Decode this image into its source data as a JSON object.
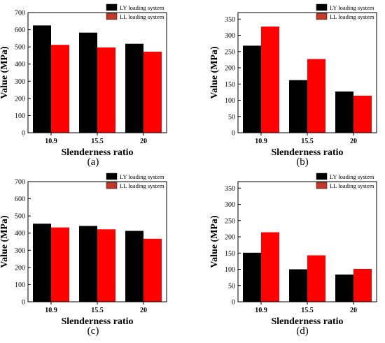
{
  "figure": {
    "panel_labels": [
      "(a)",
      "(b)",
      "(c)",
      "(d)"
    ]
  },
  "colors": {
    "LY": "#000000",
    "LL": "#ff0000",
    "LL_legend": "#c0392b",
    "frame": "#000000",
    "text": "#000000"
  },
  "chart_data": [
    {
      "panel": "(a)",
      "type": "bar",
      "categories": [
        "10.9",
        "15.5",
        "20"
      ],
      "series": [
        {
          "name": "LY loading system",
          "values": [
            625,
            583,
            518
          ]
        },
        {
          "name": "LL loading system",
          "values": [
            512,
            497,
            472
          ]
        }
      ],
      "xlabel": "Slenderness ratio",
      "ylabel": "Value (MPa)",
      "ylim": [
        0,
        700
      ],
      "yticks": [
        0,
        100,
        200,
        300,
        400,
        500,
        600,
        700
      ],
      "legend": "top-right",
      "grid": false
    },
    {
      "panel": "(b)",
      "type": "bar",
      "categories": [
        "10.9",
        "15.5",
        "20"
      ],
      "series": [
        {
          "name": "LY loading system",
          "values": [
            268,
            162,
            127
          ]
        },
        {
          "name": "LL loading system",
          "values": [
            327,
            227,
            114
          ]
        }
      ],
      "xlabel": "Slenderness ratio",
      "ylabel": "Value (MPa)",
      "ylim": [
        0,
        370
      ],
      "yticks": [
        0,
        50,
        100,
        150,
        200,
        250,
        300,
        350
      ],
      "legend": "top-right",
      "grid": false
    },
    {
      "panel": "(c)",
      "type": "bar",
      "categories": [
        "10.9",
        "15.5",
        "20"
      ],
      "series": [
        {
          "name": "LY loading system",
          "values": [
            455,
            442,
            413
          ]
        },
        {
          "name": "LL loading system",
          "values": [
            433,
            422,
            367
          ]
        }
      ],
      "xlabel": "Slenderness ratio",
      "ylabel": "Value (MPa)",
      "ylim": [
        0,
        700
      ],
      "yticks": [
        0,
        100,
        200,
        300,
        400,
        500,
        600,
        700
      ],
      "legend": "top-right",
      "grid": false
    },
    {
      "panel": "(d)",
      "type": "bar",
      "categories": [
        "10.9",
        "15.5",
        "20"
      ],
      "series": [
        {
          "name": "LY loading system",
          "values": [
            151,
            100,
            84
          ]
        },
        {
          "name": "LL loading system",
          "values": [
            214,
            143,
            101
          ]
        }
      ],
      "xlabel": "Slenderness ratio",
      "ylabel": "Value (MPa)",
      "ylim": [
        0,
        370
      ],
      "yticks": [
        0,
        50,
        100,
        150,
        200,
        250,
        300,
        350
      ],
      "legend": "top-right",
      "grid": false
    }
  ]
}
